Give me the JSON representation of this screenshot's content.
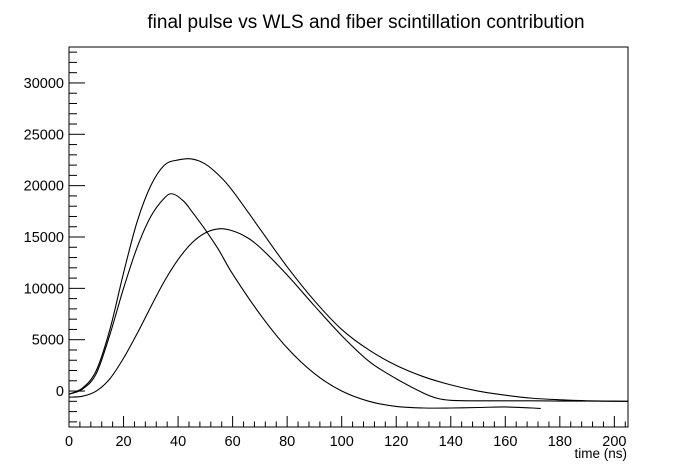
{
  "chart_data": {
    "type": "line",
    "title": "final pulse vs WLS and fiber scintillation contribution",
    "xlabel": "time (ns)",
    "ylabel": "",
    "xlim": [
      0,
      205
    ],
    "ylim": [
      -3500,
      33500
    ],
    "x_ticks": [
      0,
      20,
      40,
      60,
      80,
      100,
      120,
      140,
      160,
      180,
      200
    ],
    "y_ticks": [
      0,
      5000,
      10000,
      15000,
      20000,
      25000,
      30000
    ],
    "x_tick_labels": [
      "0",
      "20",
      "40",
      "60",
      "80",
      "100",
      "120",
      "140",
      "160",
      "180",
      "200"
    ],
    "y_tick_labels": [
      "0",
      "5000",
      "10000",
      "15000",
      "20000",
      "25000",
      "30000"
    ],
    "grid": false,
    "legend": "none",
    "line_color": "#000000",
    "series": [
      {
        "x": [
          0,
          5,
          10,
          15,
          20,
          25,
          30,
          35,
          40,
          45,
          50,
          55,
          60,
          70,
          80,
          90,
          100,
          110,
          120,
          130,
          140,
          150,
          160,
          170,
          180,
          190,
          205
        ],
        "values": [
          -300,
          300,
          2000,
          6000,
          11500,
          16500,
          20000,
          22000,
          22500,
          22600,
          22100,
          21000,
          19500,
          15800,
          12100,
          8800,
          6000,
          4000,
          2500,
          1400,
          600,
          0,
          -400,
          -700,
          -850,
          -950,
          -1000
        ]
      },
      {
        "x": [
          0,
          5,
          10,
          15,
          20,
          25,
          30,
          35,
          38,
          42,
          45,
          50,
          55,
          60,
          70,
          80,
          90,
          100,
          110,
          120,
          130,
          140,
          150,
          160,
          170,
          173
        ],
        "values": [
          -300,
          200,
          1700,
          5500,
          10000,
          14000,
          17000,
          18800,
          19200,
          18500,
          17500,
          15700,
          13700,
          11400,
          7500,
          4200,
          1700,
          0,
          -1000,
          -1500,
          -1650,
          -1650,
          -1600,
          -1550,
          -1650,
          -1700
        ]
      },
      {
        "x": [
          0,
          5,
          10,
          15,
          20,
          25,
          30,
          35,
          40,
          45,
          50,
          55,
          60,
          65,
          70,
          80,
          90,
          100,
          110,
          120,
          130,
          135,
          140,
          150,
          160,
          170,
          180,
          190,
          205
        ],
        "values": [
          -600,
          -500,
          0,
          1200,
          3200,
          5600,
          8200,
          10700,
          12800,
          14400,
          15400,
          15800,
          15600,
          15000,
          14000,
          11300,
          8300,
          5400,
          2900,
          1200,
          -200,
          -700,
          -900,
          -950,
          -950,
          -950,
          -970,
          -980,
          -1000
        ]
      }
    ]
  }
}
